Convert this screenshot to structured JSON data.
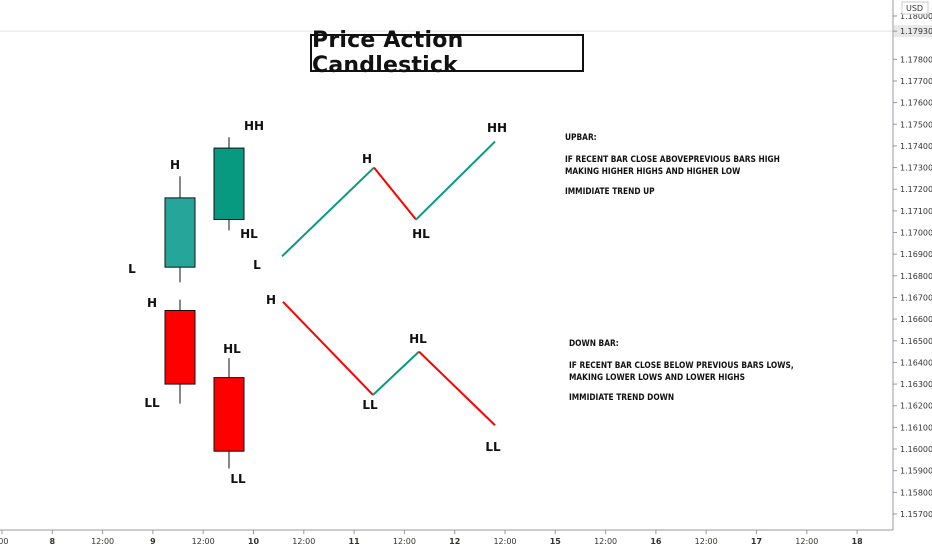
{
  "chart_data": {
    "type": "annotated-candlestick",
    "title": "Price Action Candlestick",
    "currency": "USD",
    "current_price": "1.17930",
    "price_axis": {
      "min": 1.157,
      "max": 1.18,
      "step": 0.001,
      "ticks": [
        "1.18000",
        "1.17930",
        "1.17800",
        "1.17700",
        "1.17600",
        "1.17500",
        "1.17400",
        "1.17300",
        "1.17200",
        "1.17100",
        "1.17000",
        "1.16900",
        "1.16800",
        "1.16700",
        "1.16600",
        "1.16500",
        "1.16400",
        "1.16300",
        "1.16200",
        "1.16100",
        "1.16000",
        "1.15900",
        "1.15800",
        "1.15700"
      ]
    },
    "time_axis": {
      "ticks": [
        ":00",
        "8",
        "12:00",
        "9",
        "12:00",
        "10",
        "12:00",
        "11",
        "12:00",
        "12",
        "12:00",
        "15",
        "12:00",
        "16",
        "12:00",
        "17",
        "12:00",
        "18",
        "12:00"
      ]
    },
    "candles": [
      {
        "name": "up-candle-1",
        "open": 1.1684,
        "close": 1.1716,
        "high": 1.1726,
        "low": 1.1677,
        "color": "#26a69a"
      },
      {
        "name": "up-candle-2",
        "open": 1.1706,
        "close": 1.1739,
        "high": 1.1744,
        "low": 1.1701,
        "color": "#089981"
      },
      {
        "name": "down-candle-1",
        "open": 1.1664,
        "close": 1.163,
        "high": 1.1669,
        "low": 1.1621,
        "color": "#ff0000"
      },
      {
        "name": "down-candle-2",
        "open": 1.1633,
        "close": 1.1599,
        "high": 1.1642,
        "low": 1.1591,
        "color": "#ff0000"
      }
    ],
    "upswing": [
      {
        "label": "L",
        "price": 1.1689,
        "color": "#089981"
      },
      {
        "label": "H",
        "price": 1.173,
        "color": "#ff0000"
      },
      {
        "label": "HL",
        "price": 1.1706,
        "color": "#089981"
      },
      {
        "label": "HH",
        "price": 1.1742
      }
    ],
    "downswing": [
      {
        "label": "H",
        "price": 1.1668,
        "color": "#ff0000"
      },
      {
        "label": "LL",
        "price": 1.1625,
        "color": "#089981"
      },
      {
        "label": "HL",
        "price": 1.1645,
        "color": "#ff0000"
      },
      {
        "label": "LL",
        "price": 1.1611
      }
    ],
    "candle_labels": [
      "H",
      "HH",
      "L",
      "HL",
      "H",
      "HL",
      "LL",
      "LL"
    ]
  },
  "notes": {
    "up": {
      "heading": "UPBAR:",
      "line1": "IF RECENT BAR CLOSE ABOVEPREVIOUS BARS HIGH",
      "line2": "MAKING HIGHER HIGHS AND HIGHER LOW",
      "line3": "IMMIDIATE TREND UP"
    },
    "down": {
      "heading": "DOWN BAR:",
      "line1": "IF RECENT BAR CLOSE BELOW PREVIOUS BARS LOWS,",
      "line2": "MAKING LOWER LOWS  AND LOWER HIGHS",
      "line3": "IMMIDIATE TREND DOWN"
    }
  }
}
